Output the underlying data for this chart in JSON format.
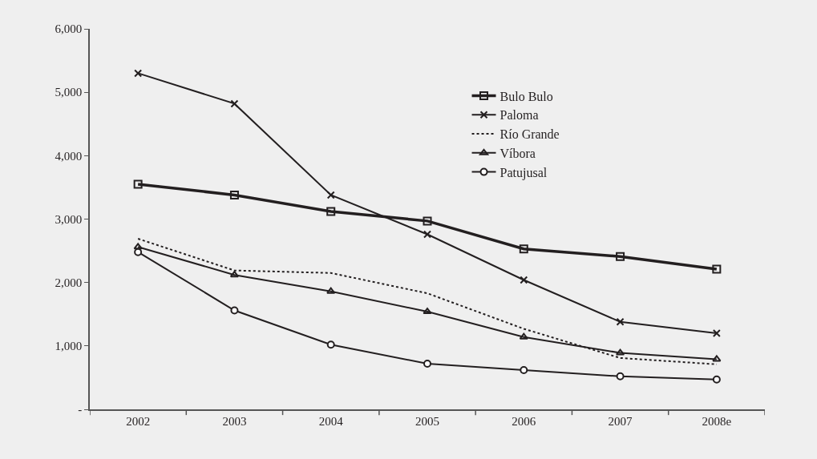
{
  "chart_data": {
    "type": "line",
    "categories": [
      "2002",
      "2003",
      "2004",
      "2005",
      "2006",
      "2007",
      "2008e"
    ],
    "series": [
      {
        "name": "Bulo Bulo",
        "color": "#231f20",
        "marker": "square",
        "line_style": "solid",
        "values": [
          3550,
          3380,
          3120,
          2970,
          2530,
          2410,
          2210
        ]
      },
      {
        "name": "Paloma",
        "color": "#231f20",
        "marker": "cross",
        "line_style": "solid",
        "values": [
          5300,
          4820,
          3380,
          2760,
          2040,
          1380,
          1200
        ]
      },
      {
        "name": "Río Grande",
        "color": "#231f20",
        "marker": "none",
        "line_style": "dotted",
        "values": [
          2690,
          2190,
          2150,
          1830,
          1270,
          810,
          710
        ]
      },
      {
        "name": "Víbora",
        "color": "#231f20",
        "marker": "triangle",
        "line_style": "solid",
        "values": [
          2560,
          2120,
          1860,
          1540,
          1140,
          890,
          790
        ]
      },
      {
        "name": "Patujusal",
        "color": "#231f20",
        "marker": "circle",
        "line_style": "solid",
        "values": [
          2480,
          1560,
          1020,
          720,
          620,
          520,
          470
        ]
      }
    ],
    "ylim": [
      0,
      6000
    ],
    "yticks": [
      {
        "value": 0,
        "label": "-"
      },
      {
        "value": 1000,
        "label": "1,000"
      },
      {
        "value": 2000,
        "label": "2,000"
      },
      {
        "value": 3000,
        "label": "3,000"
      },
      {
        "value": 4000,
        "label": "4,000"
      },
      {
        "value": 5000,
        "label": "5,000"
      },
      {
        "value": 6000,
        "label": "6,000"
      }
    ],
    "grid": false,
    "legend": "top right"
  }
}
